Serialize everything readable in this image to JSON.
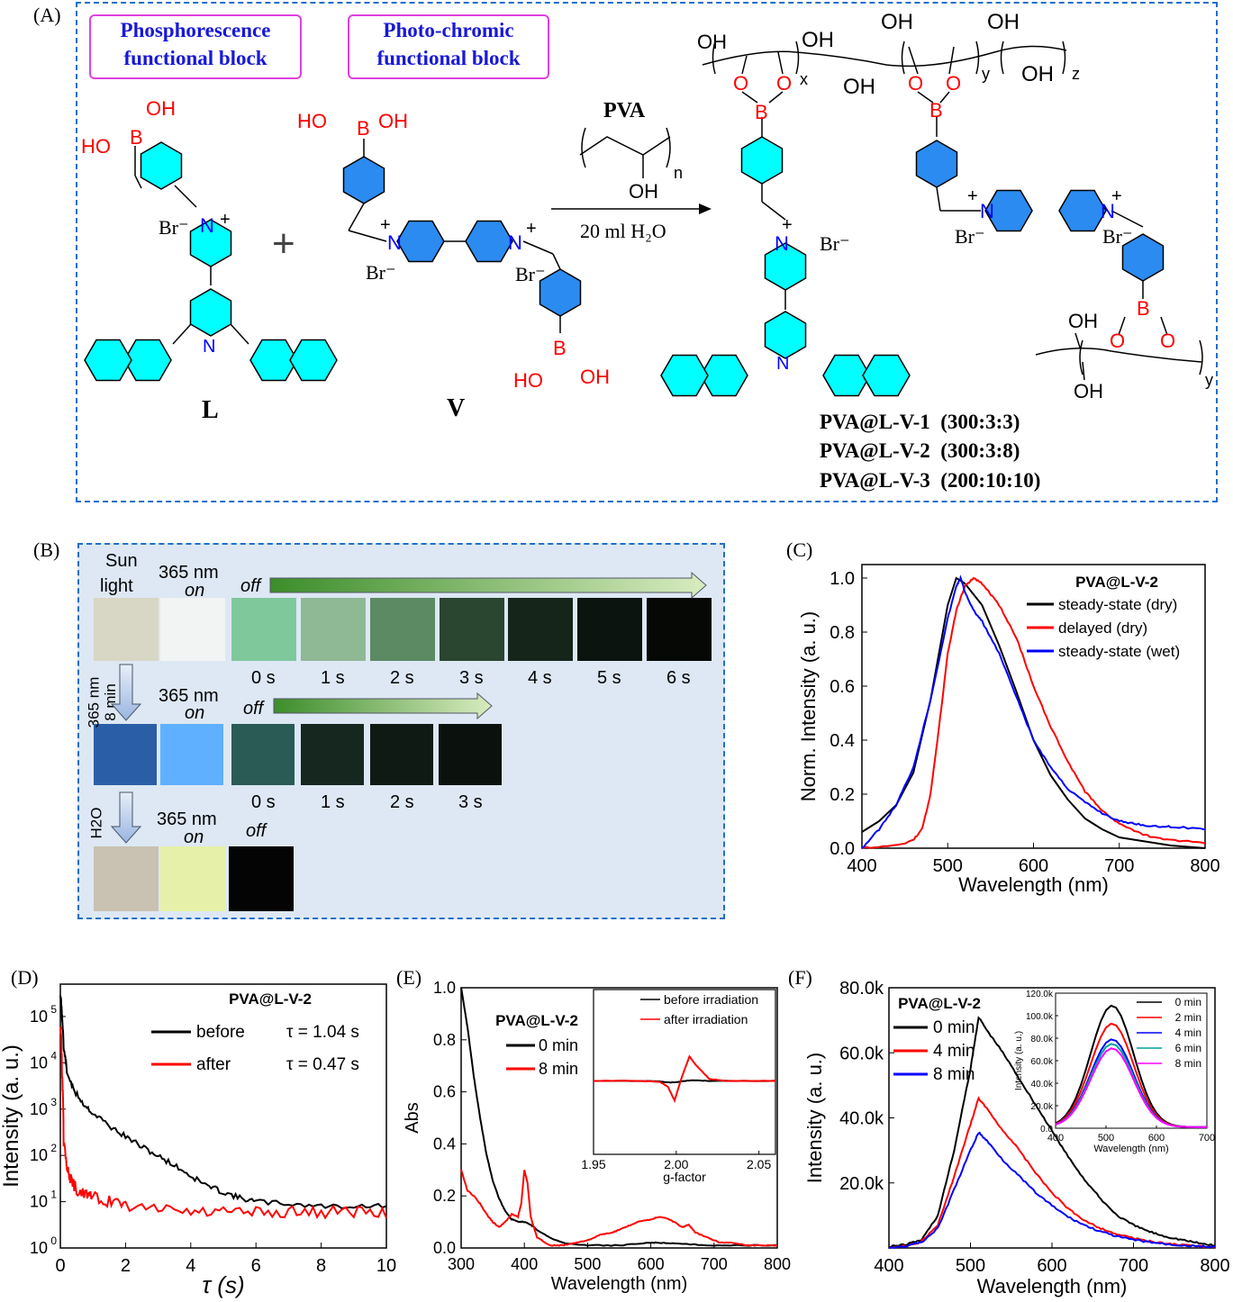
{
  "panels": {
    "a": "(A)",
    "b": "(B)",
    "c": "(C)",
    "d": "(D)",
    "e": "(E)",
    "f": "(F)"
  },
  "scheme": {
    "block1": [
      "Phosphorescence",
      "functional block"
    ],
    "block2": [
      "Photo-chromic",
      "functional block"
    ],
    "reagent": "PVA",
    "reagent_n": "n",
    "condition": "20 ml H₂O",
    "plus": "+",
    "compound_L": "L",
    "compound_V": "V",
    "atoms": {
      "B": "B",
      "N": "N",
      "OH": "OH",
      "HO": "HO",
      "O": "O",
      "Br": "Br⁻",
      "plus": "+"
    },
    "sub_x": "x",
    "sub_y": "y",
    "sub_z": "z",
    "samples": [
      "PVA@L-V-1  (300:3:3)",
      "PVA@L-V-2  (300:3:8)",
      "PVA@L-V-3  (200:10:10)"
    ],
    "colors": {
      "phos_ring": "#00ffff",
      "photo_ring": "#2b8bf0",
      "heteroatom": "#ff0000",
      "nitrogen": "#0000ff",
      "border": "#1f6fc9"
    }
  },
  "photos": {
    "row1_sun": [
      "Sun",
      "light"
    ],
    "row1_on": [
      "365 nm",
      "on"
    ],
    "off": "off",
    "row1_times": [
      "0 s",
      "1 s",
      "2 s",
      "3 s",
      "4 s",
      "5 s",
      "6 s"
    ],
    "step1": [
      "365 nm",
      "8 min"
    ],
    "row2_on": [
      "365 nm",
      "on"
    ],
    "row2_times": [
      "0 s",
      "1 s",
      "2 s",
      "3 s"
    ],
    "step2": "H2O",
    "row3_on": [
      "365 nm",
      "on"
    ],
    "row3_off": "off",
    "row1_colors": [
      "#d8d6c4",
      "#f2f4f3",
      "#7fc89c",
      "#8fb894",
      "#5b8a63",
      "#2a4530",
      "#16251a",
      "#0b140e",
      "#050805"
    ],
    "row2_colors": [
      "#2a5fa8",
      "#5fb0ff",
      "#2a5b55",
      "#15271f",
      "#0f1a14",
      "#0b120e"
    ],
    "row3_colors": [
      "#c9c1b2",
      "#e6f0a8",
      "#040404"
    ]
  },
  "chart_data": [
    {
      "panel": "C",
      "type": "line",
      "title": "PVA@L-V-2",
      "xlabel": "Wavelength (nm)",
      "ylabel": "Norm. Intensity (a. u.)",
      "xlim": [
        400,
        800
      ],
      "ylim": [
        0,
        1.05
      ],
      "xticks": [
        400,
        500,
        600,
        700,
        800
      ],
      "yticks": [
        "0.0",
        "0.2",
        "0.4",
        "0.6",
        "0.8",
        "1.0"
      ],
      "series": [
        {
          "name": "steady-state (dry)",
          "color": "#000000",
          "x": [
            400,
            420,
            440,
            460,
            480,
            500,
            510,
            520,
            540,
            560,
            580,
            600,
            620,
            640,
            660,
            680,
            700,
            720,
            740,
            760,
            800
          ],
          "y": [
            0.06,
            0.1,
            0.16,
            0.28,
            0.55,
            0.9,
            1.0,
            0.98,
            0.9,
            0.75,
            0.58,
            0.4,
            0.27,
            0.18,
            0.11,
            0.07,
            0.04,
            0.03,
            0.02,
            0.01,
            0.0
          ]
        },
        {
          "name": "delayed (dry)",
          "color": "#ff0000",
          "x": [
            400,
            440,
            460,
            470,
            480,
            490,
            500,
            510,
            520,
            530,
            540,
            560,
            580,
            600,
            620,
            640,
            660,
            680,
            700,
            720,
            740,
            760,
            800
          ],
          "y": [
            0.0,
            0.01,
            0.03,
            0.07,
            0.2,
            0.45,
            0.72,
            0.88,
            0.97,
            1.0,
            0.98,
            0.9,
            0.78,
            0.6,
            0.45,
            0.32,
            0.21,
            0.14,
            0.09,
            0.06,
            0.04,
            0.03,
            0.02
          ]
        },
        {
          "name": "steady-state (wet)",
          "color": "#0000ff",
          "x": [
            400,
            420,
            440,
            460,
            480,
            500,
            510,
            515,
            520,
            530,
            540,
            560,
            580,
            600,
            620,
            640,
            660,
            680,
            700,
            720,
            740,
            760,
            800
          ],
          "y": [
            0.0,
            0.07,
            0.16,
            0.3,
            0.55,
            0.85,
            0.97,
            1.0,
            0.95,
            0.88,
            0.84,
            0.72,
            0.56,
            0.4,
            0.3,
            0.22,
            0.17,
            0.13,
            0.1,
            0.09,
            0.08,
            0.08,
            0.07
          ]
        }
      ]
    },
    {
      "panel": "D",
      "type": "line",
      "title": "PVA@L-V-2",
      "xlabel": "τ (s)",
      "ylabel": "Intensity (a. u.)",
      "xlim": [
        0,
        10
      ],
      "yscale": "log",
      "ylim": [
        1,
        500000
      ],
      "xticks": [
        0,
        2,
        4,
        6,
        8,
        10
      ],
      "yticks": [
        1,
        10,
        100,
        1000,
        10000,
        100000
      ],
      "legend": [
        {
          "name": "before",
          "tau": "τ = 1.04 s"
        },
        {
          "name": "after",
          "tau": "τ = 0.47 s"
        }
      ],
      "series": [
        {
          "name": "before",
          "color": "#000000",
          "x": [
            0,
            0.05,
            0.1,
            0.2,
            0.4,
            0.7,
            1,
            1.5,
            2,
            2.5,
            3,
            3.5,
            4,
            4.5,
            5,
            5.5,
            6,
            7,
            8,
            9,
            10
          ],
          "y": [
            300000,
            100000,
            20000,
            6000,
            2500,
            1300,
            800,
            420,
            250,
            150,
            95,
            60,
            35,
            22,
            16,
            12,
            10,
            9,
            8,
            8,
            8
          ]
        },
        {
          "name": "after",
          "color": "#ff0000",
          "x": [
            0,
            0.05,
            0.1,
            0.2,
            0.3,
            0.5,
            0.8,
            1,
            1.5,
            2,
            3,
            4,
            5,
            6,
            7,
            8,
            9,
            10
          ],
          "y": [
            60000,
            5000,
            200,
            60,
            30,
            18,
            14,
            12,
            10,
            8,
            7,
            6,
            6,
            6,
            6,
            6,
            6,
            6
          ]
        }
      ]
    },
    {
      "panel": "E",
      "type": "line",
      "title": "PVA@L-V-2",
      "xlabel": "Wavelength (nm)",
      "ylabel": "Abs",
      "xlim": [
        300,
        800
      ],
      "ylim": [
        0,
        1.0
      ],
      "xticks": [
        300,
        400,
        500,
        600,
        700,
        800
      ],
      "yticks": [
        "0.0",
        "0.2",
        "0.4",
        "0.6",
        "0.8",
        "1.0"
      ],
      "series": [
        {
          "name": "0 min",
          "color": "#000000",
          "x": [
            300,
            310,
            320,
            330,
            340,
            350,
            360,
            370,
            380,
            390,
            400,
            410,
            420,
            440,
            460,
            500,
            550,
            600,
            620,
            650,
            700,
            750,
            800
          ],
          "y": [
            1.0,
            0.85,
            0.66,
            0.5,
            0.36,
            0.26,
            0.19,
            0.14,
            0.11,
            0.1,
            0.1,
            0.09,
            0.07,
            0.04,
            0.02,
            0.01,
            0.01,
            0.02,
            0.02,
            0.015,
            0.01,
            0.01,
            0.01
          ]
        },
        {
          "name": "8 min",
          "color": "#ff0000",
          "x": [
            300,
            310,
            320,
            330,
            340,
            350,
            360,
            370,
            380,
            390,
            395,
            400,
            405,
            410,
            420,
            440,
            460,
            480,
            500,
            520,
            540,
            560,
            580,
            600,
            615,
            630,
            650,
            660,
            670,
            690,
            710,
            730,
            750,
            770,
            800
          ],
          "y": [
            0.3,
            0.22,
            0.2,
            0.17,
            0.13,
            0.1,
            0.08,
            0.1,
            0.13,
            0.12,
            0.17,
            0.3,
            0.25,
            0.12,
            0.04,
            0.01,
            0.01,
            0.02,
            0.03,
            0.05,
            0.06,
            0.08,
            0.1,
            0.11,
            0.12,
            0.11,
            0.08,
            0.09,
            0.06,
            0.04,
            0.02,
            0.02,
            0.01,
            0.01,
            0.01
          ]
        }
      ],
      "inset": {
        "xlabel": "g-factor",
        "xlim": [
          1.95,
          2.06
        ],
        "xticks": [
          "1.95",
          "2.00",
          "2.05"
        ],
        "series": [
          {
            "name": "before irradiation",
            "color": "#000000",
            "x": [
              1.95,
              1.98,
              1.99,
              1.995,
              2.0,
              2.005,
              2.01,
              2.02,
              2.06
            ],
            "y": [
              0,
              0,
              -0.01,
              -0.04,
              -0.03,
              0.0,
              0.02,
              0.0,
              0.0
            ]
          },
          {
            "name": "after irradiation",
            "color": "#ff0000",
            "x": [
              1.95,
              1.98,
              1.99,
              1.995,
              1.999,
              2.003,
              2.008,
              2.012,
              2.02,
              2.03,
              2.06
            ],
            "y": [
              0,
              0,
              -0.02,
              -0.15,
              -0.5,
              0.05,
              0.62,
              0.4,
              0.05,
              0.0,
              0.0
            ]
          }
        ]
      }
    },
    {
      "panel": "F",
      "type": "line",
      "title": "PVA@L-V-2",
      "xlabel": "Wavelength (nm)",
      "ylabel": "Intensity (a. u.)",
      "xlim": [
        400,
        800
      ],
      "ylim": [
        0,
        80000
      ],
      "xticks": [
        400,
        500,
        600,
        700,
        800
      ],
      "yticks": [
        "20.0k",
        "40.0k",
        "60.0k",
        "80.0k"
      ],
      "series": [
        {
          "name": "0 min",
          "color": "#000000",
          "x": [
            400,
            420,
            440,
            460,
            480,
            500,
            510,
            520,
            540,
            560,
            580,
            600,
            620,
            640,
            660,
            680,
            700,
            720,
            740,
            760,
            780,
            800
          ],
          "y": [
            500,
            1000,
            2500,
            10000,
            30000,
            55000,
            71000,
            67000,
            60000,
            52000,
            44000,
            36000,
            28000,
            21000,
            15000,
            10000,
            7000,
            5000,
            3500,
            2500,
            1500,
            800
          ]
        },
        {
          "name": "4 min",
          "color": "#ff0000",
          "x": [
            400,
            420,
            440,
            460,
            480,
            500,
            510,
            520,
            540,
            560,
            580,
            600,
            620,
            640,
            660,
            680,
            700,
            720,
            740,
            760,
            780,
            800
          ],
          "y": [
            300,
            600,
            2000,
            7000,
            22000,
            38000,
            46000,
            43000,
            36000,
            30000,
            23000,
            17000,
            12000,
            8500,
            6000,
            4200,
            3000,
            2000,
            1400,
            900,
            600,
            300
          ]
        },
        {
          "name": "8 min",
          "color": "#0000ff",
          "x": [
            400,
            420,
            440,
            460,
            480,
            500,
            510,
            520,
            540,
            560,
            580,
            600,
            620,
            640,
            660,
            680,
            700,
            720,
            740,
            760,
            780,
            800
          ],
          "y": [
            200,
            500,
            1800,
            6000,
            18000,
            30000,
            35500,
            33000,
            27000,
            22000,
            17000,
            13000,
            9500,
            7000,
            5000,
            3500,
            2500,
            1800,
            1200,
            800,
            500,
            300
          ]
        }
      ],
      "inset": {
        "xlabel": "Wavelength (nm)",
        "ylabel": "Intensity (a. u.)",
        "xlim": [
          400,
          700
        ],
        "ylim": [
          0,
          120000
        ],
        "xticks": [
          "400",
          "500",
          "600",
          "700"
        ],
        "yticks": [
          "0.0",
          "20.0k",
          "40.0k",
          "60.0k",
          "80.0k",
          "100.0k",
          "120.0k"
        ],
        "series": [
          {
            "name": "0 min",
            "color": "#000000",
            "peak": 108000
          },
          {
            "name": "2 min",
            "color": "#ff0000",
            "peak": 92000
          },
          {
            "name": "4 min",
            "color": "#0000ff",
            "peak": 78000
          },
          {
            "name": "6 min",
            "color": "#00a0a0",
            "peak": 74000
          },
          {
            "name": "8 min",
            "color": "#ff00ff",
            "peak": 70000
          }
        ]
      }
    }
  ]
}
